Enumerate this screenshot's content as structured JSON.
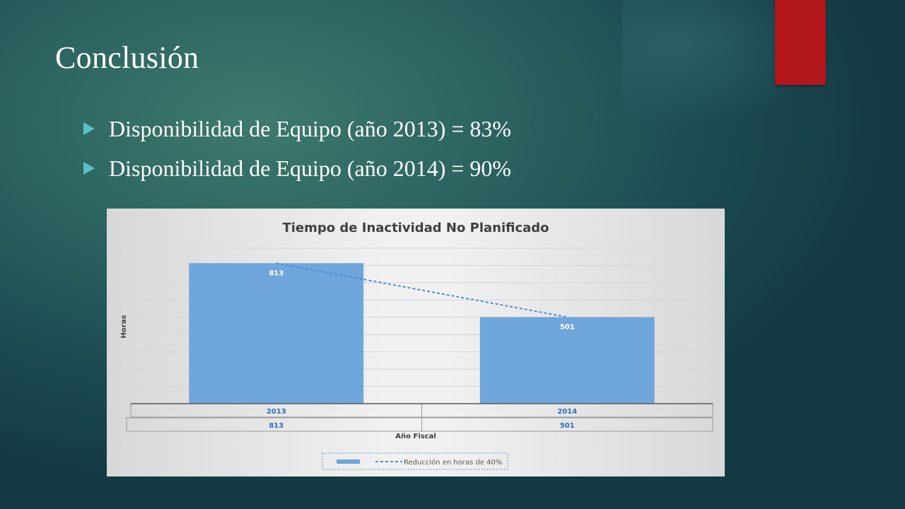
{
  "slide": {
    "title": "Conclusión",
    "bullets": [
      "Disponibilidad de Equipo (año 2013) = 83%",
      "Disponibilidad de Equipo (año 2014) = 90%"
    ],
    "accent_color": "#b0161a",
    "bullet_color": "#5bc0c8"
  },
  "chart_data": {
    "type": "bar",
    "title": "Tiempo de Inactividad No Planificado",
    "xlabel": "Año Fiscal",
    "ylabel": "Horas",
    "categories": [
      "2013",
      "2014"
    ],
    "series": [
      {
        "values": [
          813,
          501
        ],
        "color": "#6fa6db"
      }
    ],
    "data_labels": [
      "813",
      "501"
    ],
    "data_table": {
      "rows": [
        [
          "2013",
          "2014"
        ],
        [
          "813",
          "501"
        ]
      ]
    },
    "trendline": {
      "name": "Reducción en horas de 40%",
      "style": "dashed",
      "color": "#4a8fd6"
    },
    "ylim": [
      0,
      900
    ],
    "grid": true,
    "legend": "bottom"
  }
}
